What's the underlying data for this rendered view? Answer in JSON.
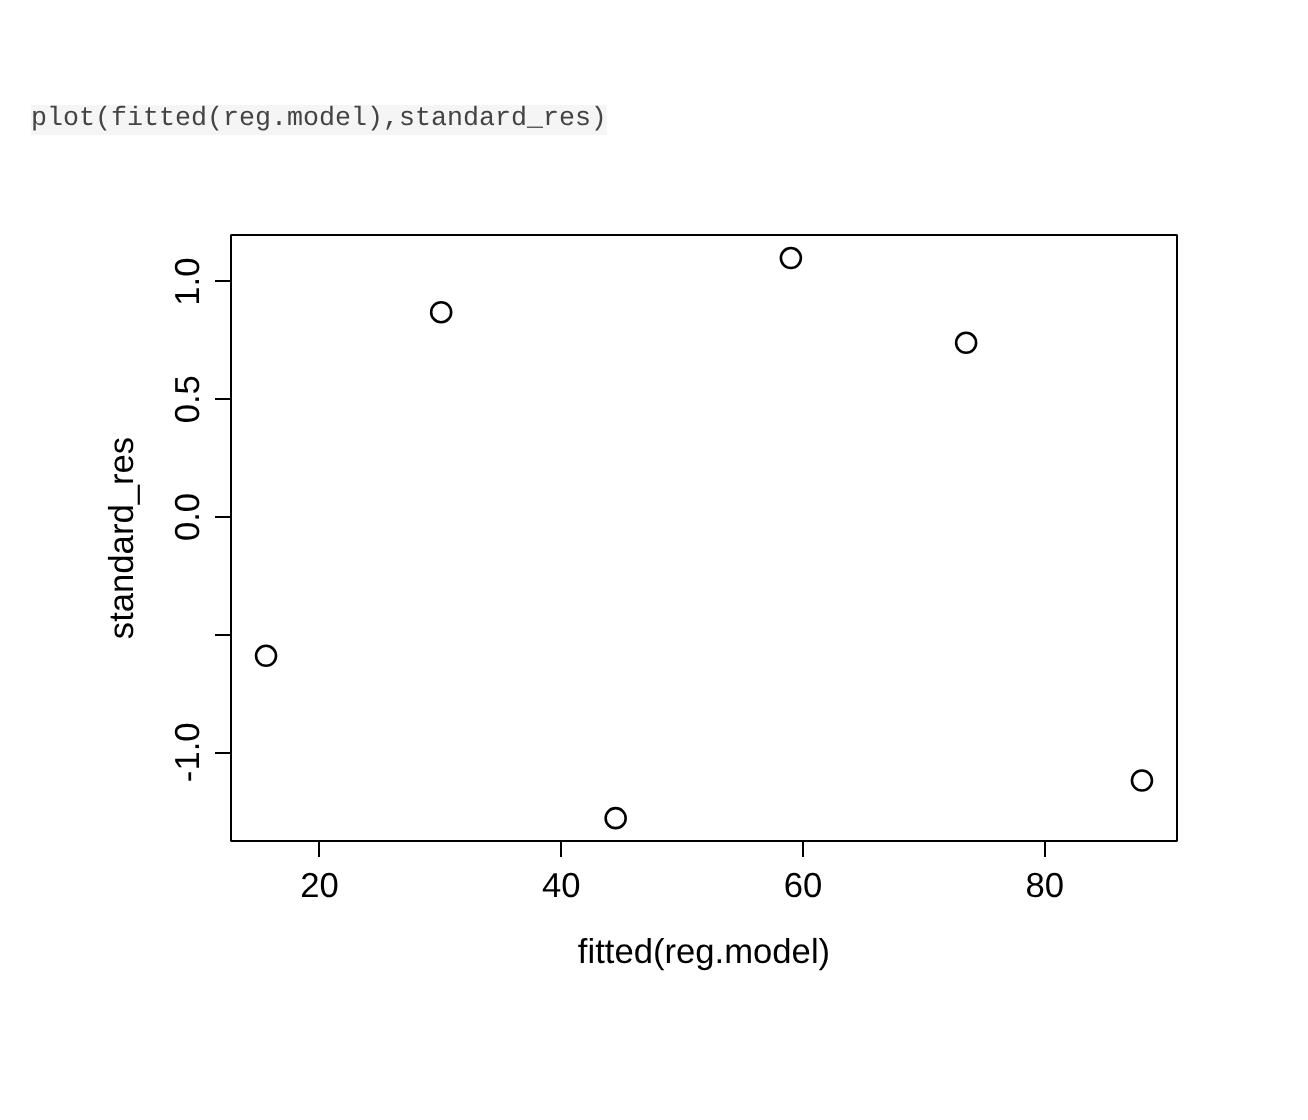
{
  "chart_data": {
    "type": "scatter",
    "annotations": [
      "plot(fitted(reg.model),standard_res)"
    ],
    "xlabel": "fitted(reg.model)",
    "ylabel": "standard_res",
    "x": [
      15.57,
      30.06,
      44.5,
      59.0,
      73.5,
      88.05
    ],
    "series": [
      {
        "color": "#000000",
        "values": [
          -0.59,
          0.87,
          -1.28,
          1.1,
          0.74,
          -1.12
        ]
      }
    ],
    "xlim": [
      12.67,
      90.95
    ],
    "ylim": [
      -1.377,
      1.198
    ],
    "xticks": [
      20,
      40,
      60,
      80
    ],
    "yticks": [
      {
        "value": -1.0,
        "label": "-1.0"
      },
      {
        "value": -0.5,
        "label": null
      },
      {
        "value": 0.0,
        "label": "0.0"
      },
      {
        "value": 0.5,
        "label": "0.5"
      },
      {
        "value": 1.0,
        "label": "1.0"
      }
    ],
    "marker": "circle",
    "grid": false
  }
}
